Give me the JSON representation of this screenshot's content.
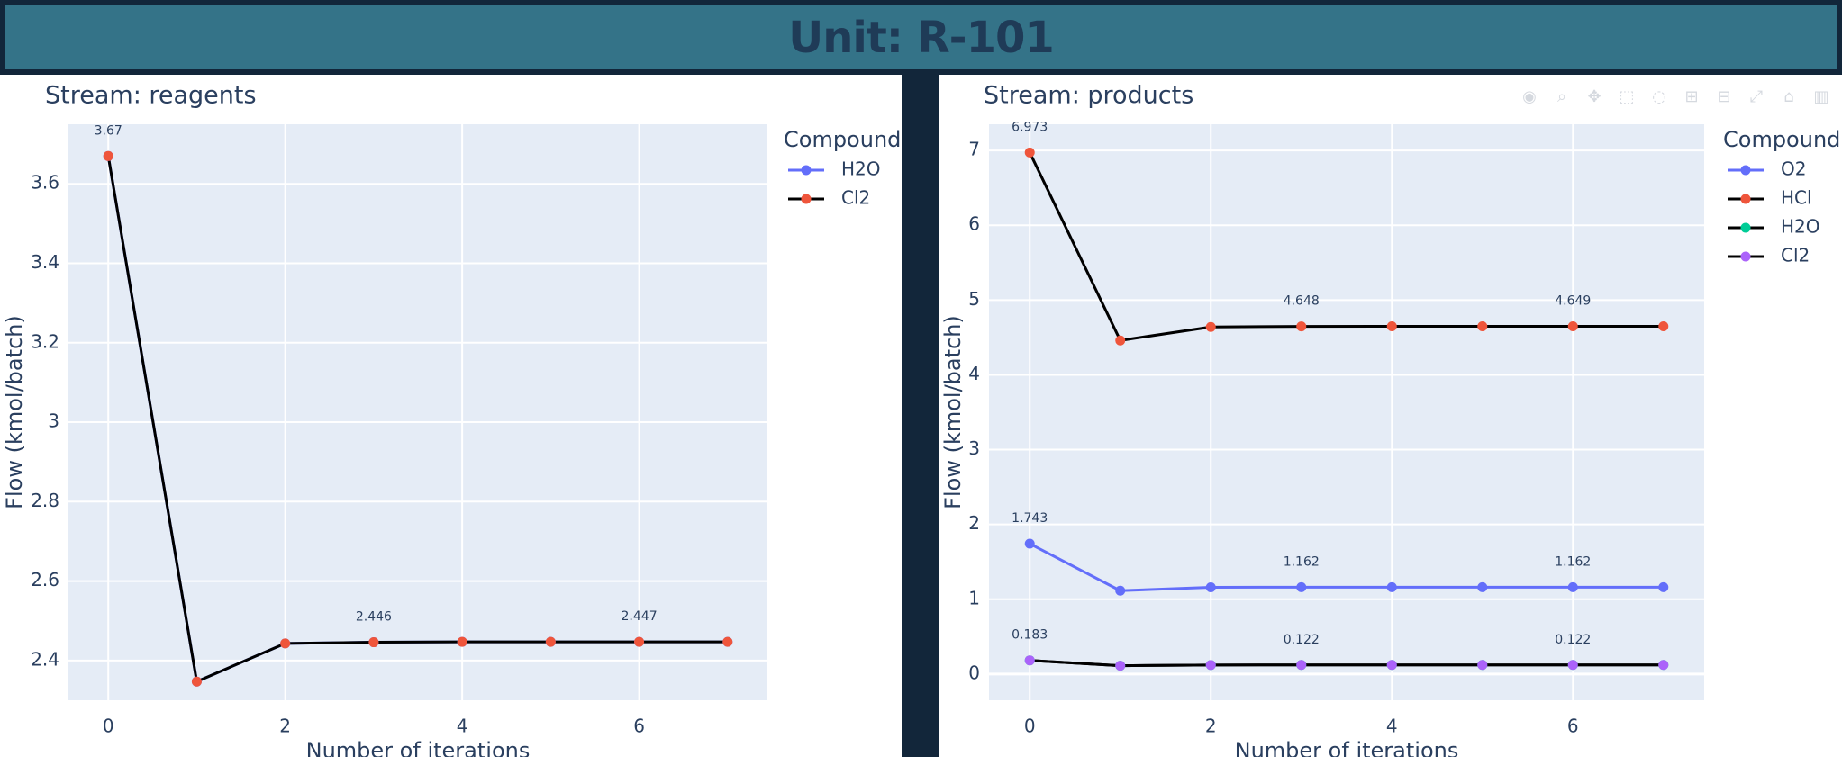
{
  "header": {
    "title": "Unit: R-101"
  },
  "chart_data": [
    {
      "type": "line",
      "title": "Stream: reagents",
      "xlabel": "Number of iterations",
      "ylabel": "Flow (kmol/batch)",
      "xlim": [
        -0.45,
        7.45
      ],
      "ylim": [
        2.3,
        3.75
      ],
      "xticks": [
        0,
        2,
        4,
        6
      ],
      "yticks": [
        2.4,
        2.6,
        2.8,
        3,
        3.2,
        3.4,
        3.6
      ],
      "ytick_labels": [
        "2.4",
        "2.6",
        "2.8",
        "3",
        "3.2",
        "3.4",
        "3.6"
      ],
      "grid": true,
      "legend": {
        "title": "Compound",
        "placement": "right"
      },
      "x": [
        0,
        1,
        2,
        3,
        4,
        5,
        6,
        7
      ],
      "series": [
        {
          "name": "H2O",
          "line_color": "#636efa",
          "marker_color": "#636efa",
          "values": [
            3.67,
            2.347,
            2.443,
            2.446,
            2.447,
            2.447,
            2.447,
            2.447
          ]
        },
        {
          "name": "Cl2",
          "line_color": "#000000",
          "marker_color": "#ef553b",
          "values": [
            3.67,
            2.347,
            2.443,
            2.446,
            2.447,
            2.447,
            2.447,
            2.447
          ]
        }
      ],
      "annotations": [
        {
          "x": 0,
          "y": 3.67,
          "text": "3.67"
        },
        {
          "x": 3,
          "y": 2.446,
          "text": "2.446"
        },
        {
          "x": 6,
          "y": 2.447,
          "text": "2.447"
        }
      ]
    },
    {
      "type": "line",
      "title": "Stream: products",
      "xlabel": "Number of iterations",
      "ylabel": "Flow (kmol/batch)",
      "xlim": [
        -0.45,
        7.45
      ],
      "ylim": [
        -0.35,
        7.35
      ],
      "xticks": [
        0,
        2,
        4,
        6
      ],
      "yticks": [
        0,
        1,
        2,
        3,
        4,
        5,
        6,
        7
      ],
      "ytick_labels": [
        "0",
        "1",
        "2",
        "3",
        "4",
        "5",
        "6",
        "7"
      ],
      "grid": true,
      "legend": {
        "title": "Compound",
        "placement": "right"
      },
      "x": [
        0,
        1,
        2,
        3,
        4,
        5,
        6,
        7
      ],
      "series": [
        {
          "name": "O2",
          "line_color": "#636efa",
          "marker_color": "#636efa",
          "values": [
            1.743,
            1.115,
            1.16,
            1.162,
            1.162,
            1.162,
            1.162,
            1.162
          ]
        },
        {
          "name": "HCl",
          "line_color": "#000000",
          "marker_color": "#ef553b",
          "values": [
            6.973,
            4.46,
            4.64,
            4.648,
            4.649,
            4.649,
            4.649,
            4.649
          ]
        },
        {
          "name": "H2O",
          "line_color": "#000000",
          "marker_color": "#00cc96",
          "values": [
            0.183,
            0.112,
            0.121,
            0.122,
            0.122,
            0.122,
            0.122,
            0.122
          ]
        },
        {
          "name": "Cl2",
          "line_color": "#000000",
          "marker_color": "#ab63fa",
          "values": [
            0.183,
            0.112,
            0.121,
            0.122,
            0.122,
            0.122,
            0.122,
            0.122
          ]
        }
      ],
      "annotations": [
        {
          "x": 0,
          "y": 6.973,
          "text": "6.973"
        },
        {
          "x": 3,
          "y": 4.648,
          "text": "4.648"
        },
        {
          "x": 6,
          "y": 4.649,
          "text": "4.649"
        },
        {
          "x": 0,
          "y": 1.743,
          "text": "1.743"
        },
        {
          "x": 3,
          "y": 1.162,
          "text": "1.162"
        },
        {
          "x": 6,
          "y": 1.162,
          "text": "1.162"
        },
        {
          "x": 0,
          "y": 0.183,
          "text": "0.183"
        },
        {
          "x": 3,
          "y": 0.122,
          "text": "0.122"
        },
        {
          "x": 6,
          "y": 0.122,
          "text": "0.122"
        }
      ]
    }
  ],
  "toolbar": {
    "icons": [
      "camera-icon",
      "zoom-icon",
      "pan-icon",
      "box-select-icon",
      "lasso-icon",
      "zoom-in-icon",
      "zoom-out-icon",
      "autoscale-icon",
      "reset-axes-icon",
      "plotly-logo-icon"
    ]
  }
}
